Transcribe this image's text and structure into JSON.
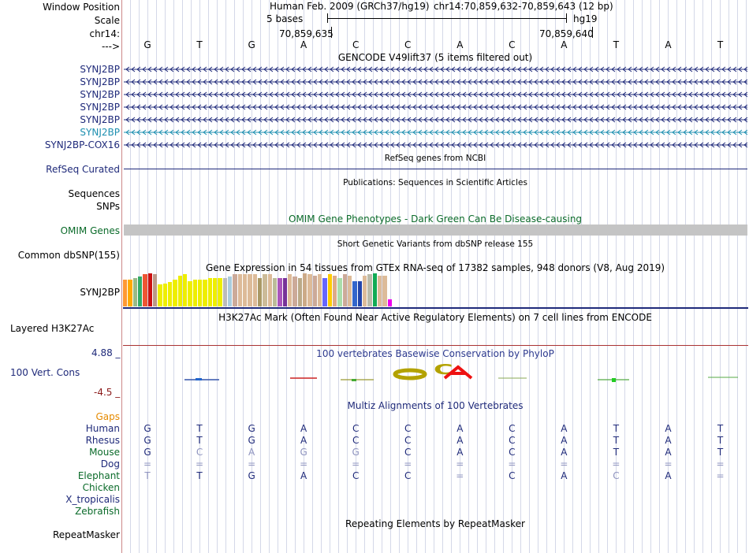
{
  "header": {
    "window_position_label": "Window Position",
    "assembly": "Human Feb. 2009 (GRCh37/hg19)",
    "position": "chr14:70,859,632-70,859,643 (12 bp)",
    "scale_label": "Scale",
    "scale_text": "5 bases",
    "scale_db": "hg19",
    "chrom_label": "chr14:",
    "tick_left": "70,859,635",
    "tick_right": "70,859,640",
    "strand_label": "--->"
  },
  "bases": [
    "G",
    "T",
    "G",
    "A",
    "C",
    "C",
    "A",
    "C",
    "A",
    "T",
    "A",
    "T"
  ],
  "gencode": {
    "title": "GENCODE V49lift37 (5 items filtered out)",
    "genes": [
      {
        "name": "SYNJ2BP",
        "color": "#1f2a7a"
      },
      {
        "name": "SYNJ2BP",
        "color": "#1f2a7a"
      },
      {
        "name": "SYNJ2BP",
        "color": "#1f2a7a"
      },
      {
        "name": "SYNJ2BP",
        "color": "#1f2a7a"
      },
      {
        "name": "SYNJ2BP",
        "color": "#1f2a7a"
      },
      {
        "name": "SYNJ2BP",
        "color": "#1d8fb0"
      },
      {
        "name": "SYNJ2BP-COX16",
        "color": "#1f2a7a"
      }
    ]
  },
  "refseq": {
    "label": "RefSeq Curated",
    "title": "RefSeq genes from NCBI"
  },
  "publications": {
    "title": "Publications: Sequences in Scientific Articles",
    "sequences_label": "Sequences",
    "snps_label": "SNPs"
  },
  "omim": {
    "title": "OMIM Gene Phenotypes - Dark Green Can Be Disease-causing",
    "label": "OMIM Genes",
    "color": "#0b6b2a"
  },
  "dbsnp": {
    "title": "Short Genetic Variants from dbSNP release 155",
    "label": "Common dbSNP(155)"
  },
  "gtex": {
    "title": "Gene Expression in 54 tissues from GTEx RNA-seq of 17382 samples, 948 donors (V8, Aug 2019)",
    "label": "SYNJ2BP",
    "bars": [
      {
        "color": "#ff9933",
        "v": 0.82
      },
      {
        "color": "#ffaa00",
        "v": 0.82
      },
      {
        "color": "#99bb88",
        "v": 0.86
      },
      {
        "color": "#33aa66",
        "v": 0.9
      },
      {
        "color": "#ee5533",
        "v": 0.97
      },
      {
        "color": "#cc1111",
        "v": 1.0
      },
      {
        "color": "#bb9988",
        "v": 0.97
      },
      {
        "color": "#eeee00",
        "v": 0.66
      },
      {
        "color": "#eeee00",
        "v": 0.7
      },
      {
        "color": "#eeee00",
        "v": 0.73
      },
      {
        "color": "#eeee00",
        "v": 0.8
      },
      {
        "color": "#eeee00",
        "v": 0.94
      },
      {
        "color": "#eeee00",
        "v": 0.97
      },
      {
        "color": "#eeee00",
        "v": 0.77
      },
      {
        "color": "#eeee00",
        "v": 0.8
      },
      {
        "color": "#eeee00",
        "v": 0.82
      },
      {
        "color": "#eeee00",
        "v": 0.8
      },
      {
        "color": "#eeee00",
        "v": 0.86
      },
      {
        "color": "#eeee00",
        "v": 0.86
      },
      {
        "color": "#eeee00",
        "v": 0.86
      },
      {
        "color": "#bbbbbb",
        "v": 0.86
      },
      {
        "color": "#aaccdd",
        "v": 0.9
      },
      {
        "color": "#ccaa99",
        "v": 0.97
      },
      {
        "color": "#ddbb99",
        "v": 0.97
      },
      {
        "color": "#ddbb99",
        "v": 0.97
      },
      {
        "color": "#ddbb99",
        "v": 0.97
      },
      {
        "color": "#ddbb99",
        "v": 0.97
      },
      {
        "color": "#aa9966",
        "v": 0.86
      },
      {
        "color": "#ccbb99",
        "v": 0.97
      },
      {
        "color": "#ddbb99",
        "v": 0.97
      },
      {
        "color": "#bbbb99",
        "v": 0.86
      },
      {
        "color": "#aa55bb",
        "v": 0.86
      },
      {
        "color": "#773399",
        "v": 0.86
      },
      {
        "color": "#ddbb99",
        "v": 0.97
      },
      {
        "color": "#ccaa99",
        "v": 0.9
      },
      {
        "color": "#bbaa88",
        "v": 0.86
      },
      {
        "color": "#ccaa88",
        "v": 1.0
      },
      {
        "color": "#ddbb99",
        "v": 0.97
      },
      {
        "color": "#ccaa99",
        "v": 0.94
      },
      {
        "color": "#ddbb99",
        "v": 0.97
      },
      {
        "color": "#6666ff",
        "v": 0.86
      },
      {
        "color": "#ffcc00",
        "v": 0.97
      },
      {
        "color": "#ddaa88",
        "v": 0.94
      },
      {
        "color": "#aaddaa",
        "v": 0.86
      },
      {
        "color": "#ccaa99",
        "v": 0.97
      },
      {
        "color": "#ddbb99",
        "v": 0.94
      },
      {
        "color": "#3366cc",
        "v": 0.77
      },
      {
        "color": "#2244aa",
        "v": 0.77
      },
      {
        "color": "#ddbb99",
        "v": 0.94
      },
      {
        "color": "#bbbbaa",
        "v": 0.97
      },
      {
        "color": "#11aa55",
        "v": 1.0
      },
      {
        "color": "#ddbb99",
        "v": 0.94
      },
      {
        "color": "#ddbb99",
        "v": 0.94
      },
      {
        "color": "#ee00ee",
        "v": 0.22
      }
    ]
  },
  "h3k27ac": {
    "title": "H3K27Ac Mark (Often Found Near Active Regulatory Elements) on 7 cell lines from ENCODE",
    "label": "Layered H3K27Ac"
  },
  "phylop": {
    "title": "100 vertebrates Basewise Conservation by PhyloP",
    "label": "100 Vert. Cons",
    "max_label": "4.88 _",
    "min_label": "-4.5 _"
  },
  "multiz": {
    "title": "Multiz Alignments of 100 Vertebrates",
    "gaps_label": "Gaps",
    "species": [
      {
        "name": "Human",
        "color": "#1f2a7a",
        "bases": [
          "G",
          "T",
          "G",
          "A",
          "C",
          "C",
          "A",
          "C",
          "A",
          "T",
          "A",
          "T"
        ],
        "faint": []
      },
      {
        "name": "Rhesus",
        "color": "#1f2a7a",
        "bases": [
          "G",
          "T",
          "G",
          "A",
          "C",
          "C",
          "A",
          "C",
          "A",
          "T",
          "A",
          "T"
        ],
        "faint": []
      },
      {
        "name": "Mouse",
        "color": "#0b6b2a",
        "bases": [
          "G",
          "C",
          "A",
          "G",
          "G",
          "C",
          "A",
          "C",
          "A",
          "T",
          "A",
          "T"
        ],
        "faint": [
          1,
          2,
          3,
          4
        ]
      },
      {
        "name": "Dog",
        "color": "#1f2a7a",
        "bases": [
          "=",
          "=",
          "=",
          "=",
          "=",
          "=",
          "=",
          "=",
          "=",
          "=",
          "=",
          "="
        ],
        "faint": [
          0,
          1,
          2,
          3,
          4,
          5,
          6,
          7,
          8,
          9,
          10,
          11
        ]
      },
      {
        "name": "Elephant",
        "color": "#0b6b2a",
        "bases": [
          "T",
          "T",
          "G",
          "A",
          "C",
          "C",
          "=",
          "C",
          "A",
          "C",
          "A",
          "="
        ],
        "faint": [
          0,
          6,
          9,
          11
        ]
      },
      {
        "name": "Chicken",
        "color": "#0b6b2a",
        "bases": [],
        "faint": []
      },
      {
        "name": "X_tropicalis",
        "color": "#1f2a7a",
        "bases": [],
        "faint": []
      },
      {
        "name": "Zebrafish",
        "color": "#0b6b2a",
        "bases": [],
        "faint": []
      }
    ]
  },
  "repeatmasker": {
    "title": "Repeating Elements by RepeatMasker",
    "label": "RepeatMasker"
  }
}
